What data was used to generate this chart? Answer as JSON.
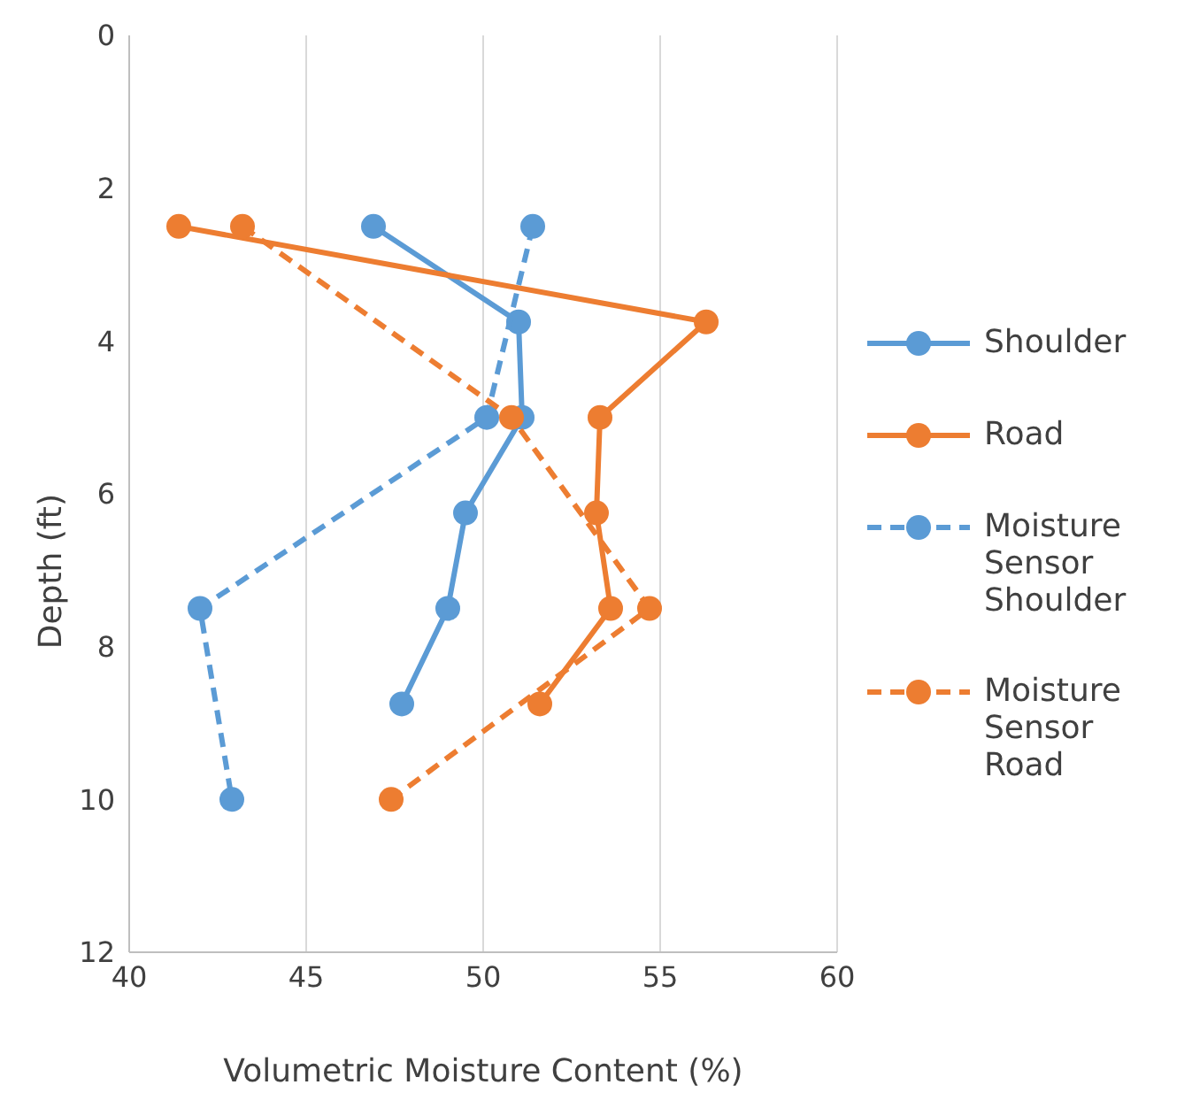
{
  "chart_data": {
    "type": "line",
    "xlabel": "Volumetric Moisture Content (%)",
    "ylabel": "Depth (ft)",
    "xlim": [
      40,
      60
    ],
    "xticks": [
      40,
      45,
      50,
      55,
      60
    ],
    "ylim": [
      12,
      0
    ],
    "yticks": [
      0,
      2,
      4,
      6,
      8,
      10,
      12
    ],
    "grid": "x",
    "legend": "right",
    "marker": "circle",
    "series": [
      {
        "name": "Shoulder",
        "color": "#5b9bd5",
        "line_style": "solid",
        "x": [
          46.9,
          51.0,
          51.1,
          49.5,
          49.0,
          47.7
        ],
        "values": [
          2.5,
          3.75,
          5,
          6.25,
          7.5,
          8.75
        ]
      },
      {
        "name": "Road",
        "color": "#ed7d31",
        "line_style": "solid",
        "x": [
          41.4,
          56.3,
          53.3,
          53.2,
          53.6,
          51.6
        ],
        "values": [
          2.5,
          3.75,
          5,
          6.25,
          7.5,
          8.75
        ]
      },
      {
        "name": "Moisture Sensor Shoulder",
        "color": "#5b9bd5",
        "line_style": "dashed",
        "x": [
          51.4,
          50.1,
          42.0,
          42.9
        ],
        "values": [
          2.5,
          5,
          7.5,
          10
        ]
      },
      {
        "name": "Moisture Sensor Road",
        "color": "#ed7d31",
        "line_style": "dashed",
        "x": [
          43.2,
          50.8,
          54.7,
          47.4
        ],
        "values": [
          2.5,
          5,
          7.5,
          10
        ]
      }
    ]
  }
}
